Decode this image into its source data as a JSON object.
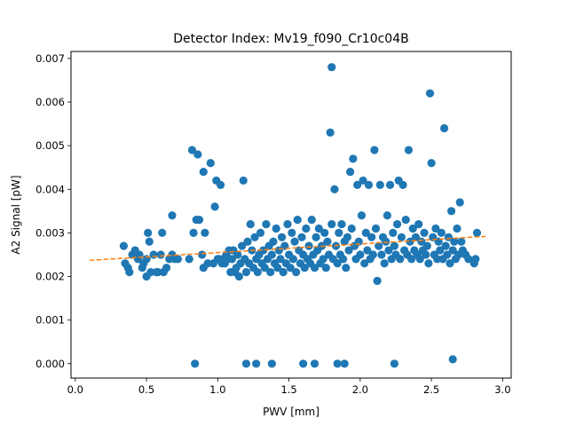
{
  "chart_data": {
    "type": "scatter",
    "title": "Detector Index: Mv19_f090_Cr10c04B",
    "xlabel": "PWV [mm]",
    "ylabel": "A2 Signal [pW]",
    "xlim": [
      -0.03,
      3.06
    ],
    "ylim": [
      -0.00033,
      0.00716
    ],
    "xticks": [
      0.0,
      0.5,
      1.0,
      1.5,
      2.0,
      2.5,
      3.0
    ],
    "xtick_labels": [
      "0.0",
      "0.5",
      "1.0",
      "1.5",
      "2.0",
      "2.5",
      "3.0"
    ],
    "yticks": [
      0.0,
      0.001,
      0.002,
      0.003,
      0.004,
      0.005,
      0.006,
      0.007
    ],
    "ytick_labels": [
      "0.000",
      "0.001",
      "0.002",
      "0.003",
      "0.004",
      "0.005",
      "0.006",
      "0.007"
    ],
    "colors": {
      "points": "#1f77b4",
      "fit": "#ff7f0e"
    },
    "fit_line": {
      "x": [
        0.1,
        2.88
      ],
      "y": [
        0.00237,
        0.00292
      ],
      "style": "dashed"
    },
    "series": [
      {
        "name": "measurements",
        "points": [
          [
            0.34,
            0.0027
          ],
          [
            0.35,
            0.0023
          ],
          [
            0.37,
            0.0022
          ],
          [
            0.38,
            0.0021
          ],
          [
            0.4,
            0.0025
          ],
          [
            0.42,
            0.0026
          ],
          [
            0.44,
            0.0024
          ],
          [
            0.45,
            0.0025
          ],
          [
            0.47,
            0.0022
          ],
          [
            0.48,
            0.0023
          ],
          [
            0.5,
            0.002
          ],
          [
            0.5,
            0.0024
          ],
          [
            0.51,
            0.003
          ],
          [
            0.52,
            0.0028
          ],
          [
            0.53,
            0.0021
          ],
          [
            0.55,
            0.0025
          ],
          [
            0.57,
            0.0021
          ],
          [
            0.58,
            0.0021
          ],
          [
            0.6,
            0.0025
          ],
          [
            0.61,
            0.003
          ],
          [
            0.62,
            0.0021
          ],
          [
            0.64,
            0.0022
          ],
          [
            0.66,
            0.0024
          ],
          [
            0.68,
            0.0034
          ],
          [
            0.68,
            0.0025
          ],
          [
            0.7,
            0.0024
          ],
          [
            0.72,
            0.0024
          ],
          [
            0.8,
            0.0024
          ],
          [
            0.82,
            0.0049
          ],
          [
            0.83,
            0.003
          ],
          [
            0.85,
            0.0033
          ],
          [
            0.86,
            0.0048
          ],
          [
            0.87,
            0.0033
          ],
          [
            0.89,
            0.0025
          ],
          [
            0.9,
            0.0044
          ],
          [
            0.9,
            0.0022
          ],
          [
            0.91,
            0.003
          ],
          [
            0.93,
            0.0023
          ],
          [
            0.95,
            0.0046
          ],
          [
            0.97,
            0.0023
          ],
          [
            0.98,
            0.0036
          ],
          [
            0.99,
            0.0042
          ],
          [
            1.0,
            0.0024
          ],
          [
            1.01,
            0.0024
          ],
          [
            1.02,
            0.0041
          ],
          [
            1.03,
            0.0023
          ],
          [
            1.04,
            0.0024
          ],
          [
            1.05,
            0.0023
          ],
          [
            1.06,
            0.0025
          ],
          [
            1.07,
            0.0024
          ],
          [
            1.08,
            0.0026
          ],
          [
            1.09,
            0.0021
          ],
          [
            1.1,
            0.0024
          ],
          [
            1.11,
            0.0026
          ],
          [
            1.12,
            0.0021
          ],
          [
            1.13,
            0.0022
          ],
          [
            1.14,
            0.0025
          ],
          [
            1.15,
            0.002
          ],
          [
            1.16,
            0.0023
          ],
          [
            1.17,
            0.0027
          ],
          [
            1.18,
            0.0042
          ],
          [
            1.19,
            0.0024
          ],
          [
            1.2,
            0.0021
          ],
          [
            1.21,
            0.0028
          ],
          [
            1.22,
            0.0023
          ],
          [
            1.23,
            0.0032
          ],
          [
            1.24,
            0.0026
          ],
          [
            1.25,
            0.0022
          ],
          [
            1.26,
            0.0029
          ],
          [
            1.27,
            0.0024
          ],
          [
            1.28,
            0.0021
          ],
          [
            1.29,
            0.0025
          ],
          [
            1.3,
            0.003
          ],
          [
            1.31,
            0.0023
          ],
          [
            1.32,
            0.0026
          ],
          [
            1.33,
            0.0022
          ],
          [
            1.34,
            0.0032
          ],
          [
            1.35,
            0.0024
          ],
          [
            1.36,
            0.0027
          ],
          [
            1.37,
            0.0021
          ],
          [
            1.38,
            0.0025
          ],
          [
            1.39,
            0.0028
          ],
          [
            1.4,
            0.0023
          ],
          [
            1.41,
            0.0031
          ],
          [
            1.42,
            0.0022
          ],
          [
            1.43,
            0.0026
          ],
          [
            1.44,
            0.0024
          ],
          [
            1.45,
            0.0029
          ],
          [
            1.46,
            0.0021
          ],
          [
            1.47,
            0.0027
          ],
          [
            1.48,
            0.0023
          ],
          [
            1.49,
            0.0032
          ],
          [
            1.5,
            0.0025
          ],
          [
            1.51,
            0.0022
          ],
          [
            1.52,
            0.003
          ],
          [
            1.53,
            0.0024
          ],
          [
            1.54,
            0.0028
          ],
          [
            1.55,
            0.0021
          ],
          [
            1.56,
            0.0033
          ],
          [
            1.57,
            0.0026
          ],
          [
            1.58,
            0.0023
          ],
          [
            1.59,
            0.0029
          ],
          [
            1.6,
            0.0025
          ],
          [
            1.61,
            0.0022
          ],
          [
            1.62,
            0.0031
          ],
          [
            1.63,
            0.0024
          ],
          [
            1.64,
            0.0027
          ],
          [
            1.65,
            0.0023
          ],
          [
            1.66,
            0.0033
          ],
          [
            1.67,
            0.0025
          ],
          [
            1.68,
            0.0022
          ],
          [
            1.69,
            0.0029
          ],
          [
            1.7,
            0.0026
          ],
          [
            1.71,
            0.0031
          ],
          [
            1.72,
            0.0023
          ],
          [
            1.73,
            0.0027
          ],
          [
            1.74,
            0.0024
          ],
          [
            1.75,
            0.003
          ],
          [
            1.76,
            0.0022
          ],
          [
            1.77,
            0.0028
          ],
          [
            1.78,
            0.0025
          ],
          [
            1.79,
            0.0053
          ],
          [
            1.8,
            0.0068
          ],
          [
            1.8,
            0.0032
          ],
          [
            1.81,
            0.0024
          ],
          [
            1.82,
            0.004
          ],
          [
            1.83,
            0.0027
          ],
          [
            1.84,
            0.0023
          ],
          [
            1.85,
            0.003
          ],
          [
            1.86,
            0.0025
          ],
          [
            1.87,
            0.0032
          ],
          [
            1.88,
            0.0024
          ],
          [
            1.89,
            0.0028
          ],
          [
            1.9,
            0.0022
          ],
          [
            1.91,
            0.0029
          ],
          [
            1.92,
            0.0026
          ],
          [
            1.93,
            0.0044
          ],
          [
            1.94,
            0.0031
          ],
          [
            1.95,
            0.0047
          ],
          [
            1.96,
            0.0027
          ],
          [
            1.97,
            0.0024
          ],
          [
            1.98,
            0.0041
          ],
          [
            1.99,
            0.0028
          ],
          [
            2.0,
            0.0025
          ],
          [
            2.01,
            0.0034
          ],
          [
            2.02,
            0.0042
          ],
          [
            2.03,
            0.0023
          ],
          [
            2.04,
            0.003
          ],
          [
            2.05,
            0.0026
          ],
          [
            2.06,
            0.0041
          ],
          [
            2.07,
            0.0024
          ],
          [
            2.08,
            0.0029
          ],
          [
            2.09,
            0.0025
          ],
          [
            2.1,
            0.0049
          ],
          [
            2.11,
            0.0031
          ],
          [
            2.12,
            0.0019
          ],
          [
            2.13,
            0.0027
          ],
          [
            2.14,
            0.0041
          ],
          [
            2.15,
            0.0025
          ],
          [
            2.16,
            0.0029
          ],
          [
            2.17,
            0.0023
          ],
          [
            2.18,
            0.0028
          ],
          [
            2.19,
            0.0034
          ],
          [
            2.2,
            0.0026
          ],
          [
            2.21,
            0.0041
          ],
          [
            2.22,
            0.0024
          ],
          [
            2.23,
            0.003
          ],
          [
            2.24,
            0.0027
          ],
          [
            2.25,
            0.0025
          ],
          [
            2.26,
            0.0032
          ],
          [
            2.27,
            0.0042
          ],
          [
            2.28,
            0.0024
          ],
          [
            2.29,
            0.0029
          ],
          [
            2.3,
            0.0041
          ],
          [
            2.31,
            0.0026
          ],
          [
            2.32,
            0.0033
          ],
          [
            2.33,
            0.0025
          ],
          [
            2.34,
            0.0049
          ],
          [
            2.35,
            0.0028
          ],
          [
            2.36,
            0.0024
          ],
          [
            2.37,
            0.0031
          ],
          [
            2.38,
            0.0026
          ],
          [
            2.39,
            0.0029
          ],
          [
            2.4,
            0.0025
          ],
          [
            2.41,
            0.0032
          ],
          [
            2.42,
            0.0024
          ],
          [
            2.43,
            0.0028
          ],
          [
            2.44,
            0.0026
          ],
          [
            2.45,
            0.003
          ],
          [
            2.46,
            0.0025
          ],
          [
            2.47,
            0.0027
          ],
          [
            2.48,
            0.0023
          ],
          [
            2.49,
            0.0062
          ],
          [
            2.5,
            0.0046
          ],
          [
            2.51,
            0.0029
          ],
          [
            2.52,
            0.0025
          ],
          [
            2.53,
            0.0031
          ],
          [
            2.54,
            0.0024
          ],
          [
            2.55,
            0.0028
          ],
          [
            2.56,
            0.0026
          ],
          [
            2.57,
            0.003
          ],
          [
            2.58,
            0.0024
          ],
          [
            2.59,
            0.0054
          ],
          [
            2.6,
            0.0027
          ],
          [
            2.61,
            0.0025
          ],
          [
            2.62,
            0.0029
          ],
          [
            2.63,
            0.0023
          ],
          [
            2.64,
            0.0035
          ],
          [
            2.65,
            0.0026
          ],
          [
            2.66,
            0.0028
          ],
          [
            2.67,
            0.0024
          ],
          [
            2.68,
            0.0031
          ],
          [
            2.69,
            0.0025
          ],
          [
            2.7,
            0.0037
          ],
          [
            2.71,
            0.0028
          ],
          [
            2.72,
            0.0026
          ],
          [
            2.74,
            0.0025
          ],
          [
            2.76,
            0.0024
          ],
          [
            2.8,
            0.0023
          ],
          [
            2.81,
            0.0024
          ],
          [
            2.82,
            0.003
          ],
          [
            0.84,
            0.0
          ],
          [
            1.2,
            0.0
          ],
          [
            1.27,
            0.0
          ],
          [
            1.38,
            0.0
          ],
          [
            1.6,
            0.0
          ],
          [
            1.68,
            0.0
          ],
          [
            1.84,
            0.0
          ],
          [
            1.89,
            0.0
          ],
          [
            2.24,
            0.0
          ],
          [
            2.65,
            0.0001
          ]
        ]
      }
    ]
  }
}
